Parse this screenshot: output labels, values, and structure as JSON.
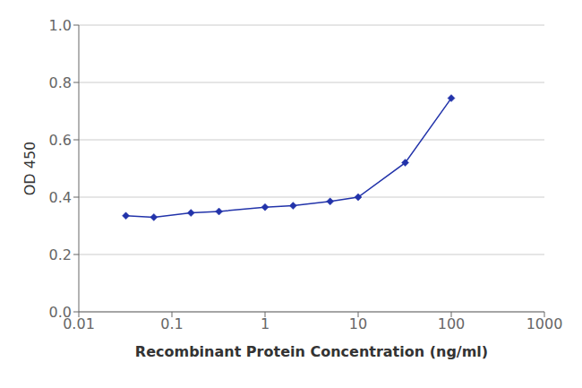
{
  "chart_data": {
    "type": "line",
    "x": [
      0.032,
      0.064,
      0.16,
      0.32,
      1.0,
      2.0,
      5.0,
      10.0,
      32.0,
      100.0
    ],
    "values": [
      0.335,
      0.33,
      0.345,
      0.35,
      0.365,
      0.37,
      0.385,
      0.4,
      0.52,
      0.745
    ],
    "color": "#2233aa",
    "marker": "diamond",
    "xlabel": "Recombinant Protein Concentration (ng/ml)",
    "ylabel": "OD 450",
    "log": "x",
    "xlim": [
      0.01,
      1000
    ],
    "ylim": [
      0.0,
      1.0
    ],
    "xticks": [
      0.01,
      0.1,
      1,
      10,
      100,
      1000
    ],
    "yticks": [
      {
        "value": 0.0,
        "label": "0.0"
      },
      0.2,
      0.4,
      0.6,
      0.8,
      {
        "value": 1.0,
        "label": "1.0"
      }
    ],
    "grid": "y"
  }
}
